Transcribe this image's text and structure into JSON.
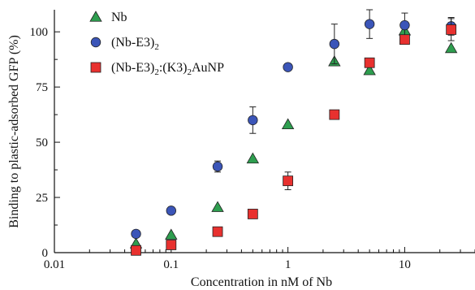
{
  "chart_data": {
    "type": "scatter",
    "xscale": "log",
    "xlim": [
      0.01,
      40
    ],
    "ylim": [
      0,
      110
    ],
    "xlabel": "Concentration in nM of Nb",
    "ylabel": "Binding to plastic-adsorbed GFP (%)",
    "xticks": [
      0.01,
      0.1,
      1,
      10
    ],
    "xtick_labels": [
      "0.01",
      "0.1",
      "1",
      "10"
    ],
    "yticks": [
      0,
      25,
      50,
      75,
      100
    ],
    "ytick_labels": [
      "0",
      "25",
      "50",
      "75",
      "100"
    ],
    "grid": false,
    "legend_position": "top-left",
    "series": [
      {
        "name": "Nb",
        "marker": "triangle",
        "color": "#2e9e4f",
        "points": [
          {
            "x": 0.05,
            "y": 4
          },
          {
            "x": 0.1,
            "y": 8
          },
          {
            "x": 0.25,
            "y": 20.5
          },
          {
            "x": 0.5,
            "y": 42.5
          },
          {
            "x": 1,
            "y": 58
          },
          {
            "x": 2.5,
            "y": 86.5
          },
          {
            "x": 5,
            "y": 82.5
          },
          {
            "x": 10,
            "y": 100.5,
            "err": 3
          },
          {
            "x": 25,
            "y": 92.5
          }
        ]
      },
      {
        "name": "(Nb-E3)2",
        "marker": "circle",
        "color": "#3b55b8",
        "points": [
          {
            "x": 0.05,
            "y": 8.5
          },
          {
            "x": 0.1,
            "y": 19
          },
          {
            "x": 0.25,
            "y": 39,
            "err": 2.5
          },
          {
            "x": 0.5,
            "y": 60,
            "err": 6
          },
          {
            "x": 1,
            "y": 84
          },
          {
            "x": 2.5,
            "y": 94.5,
            "err": 9
          },
          {
            "x": 5,
            "y": 103.5,
            "err": 6.5
          },
          {
            "x": 10,
            "y": 103,
            "err": 5.5
          },
          {
            "x": 25,
            "y": 102.5,
            "err": 4
          }
        ]
      },
      {
        "name": "(Nb-E3)2:(K3)2AuNP",
        "marker": "square",
        "color": "#e8312f",
        "points": [
          {
            "x": 0.05,
            "y": 1
          },
          {
            "x": 0.1,
            "y": 3.5
          },
          {
            "x": 0.25,
            "y": 9.5
          },
          {
            "x": 0.5,
            "y": 17.5
          },
          {
            "x": 1,
            "y": 32.5,
            "err": 4
          },
          {
            "x": 2.5,
            "y": 62.5
          },
          {
            "x": 5,
            "y": 86
          },
          {
            "x": 10,
            "y": 96.5
          },
          {
            "x": 25,
            "y": 101,
            "err": 5
          }
        ]
      }
    ]
  }
}
